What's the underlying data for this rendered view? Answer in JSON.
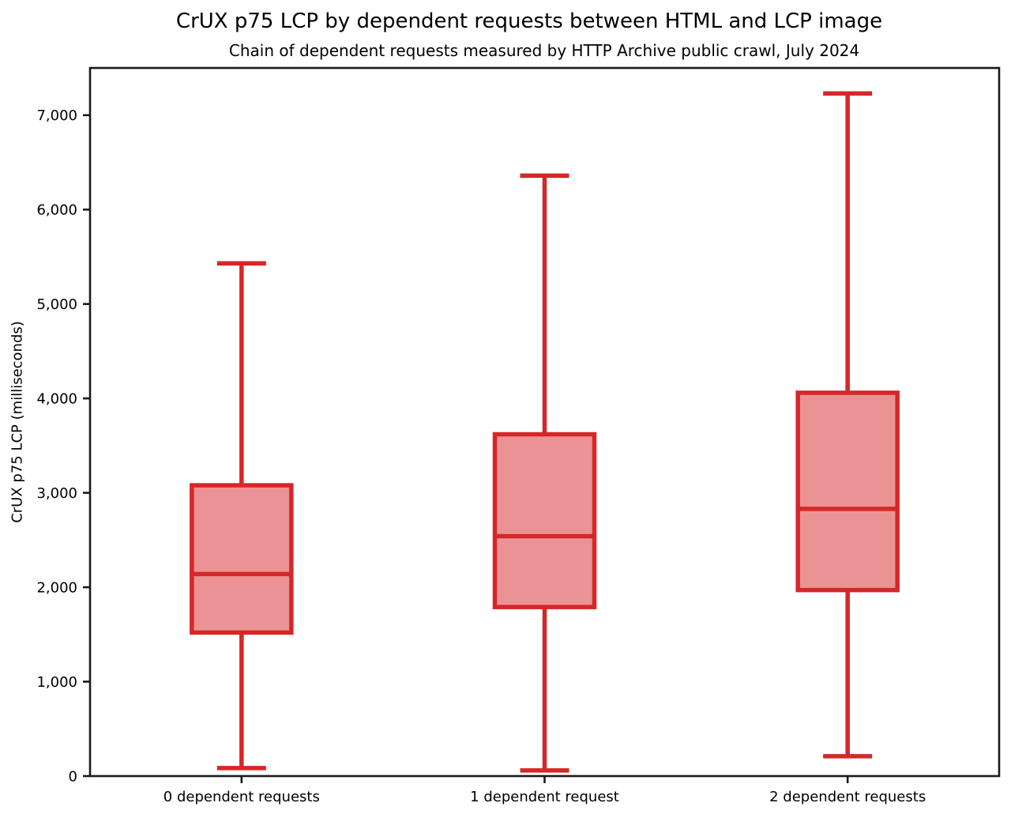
{
  "chart_data": {
    "type": "boxplot",
    "title": "CrUX p75 LCP by dependent requests between HTML and LCP image",
    "subtitle": "Chain of dependent requests measured by HTTP Archive public crawl, July 2024",
    "ylabel": "CrUX p75 LCP (milliseconds)",
    "xlabel": "",
    "unit": "milliseconds",
    "categories": [
      "0 dependent requests",
      "1 dependent request",
      "2 dependent requests"
    ],
    "series": [
      {
        "name": "0 dependent requests",
        "whisker_low": 85,
        "q1": 1520,
        "median": 2140,
        "q3": 3080,
        "whisker_high": 5430
      },
      {
        "name": "1 dependent request",
        "whisker_low": 60,
        "q1": 1790,
        "median": 2540,
        "q3": 3620,
        "whisker_high": 6360
      },
      {
        "name": "2 dependent requests",
        "whisker_low": 210,
        "q1": 1970,
        "median": 2830,
        "q3": 4060,
        "whisker_high": 7230
      }
    ],
    "ylim": [
      0,
      7500
    ],
    "yticks": [
      0,
      1000,
      2000,
      3000,
      4000,
      5000,
      6000,
      7000
    ],
    "ytick_labels": [
      "0",
      "1,000",
      "2,000",
      "3,000",
      "4,000",
      "5,000",
      "6,000",
      "7,000"
    ],
    "grid": false,
    "legend": null,
    "colors": {
      "box_edge": "#d62728",
      "box_fill": "#eb9394",
      "axis": "#1a1a1a",
      "text": "#000000",
      "background": "#ffffff"
    }
  }
}
